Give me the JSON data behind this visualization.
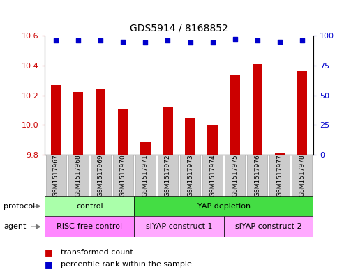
{
  "title": "GDS5914 / 8168852",
  "samples": [
    "GSM1517967",
    "GSM1517968",
    "GSM1517969",
    "GSM1517970",
    "GSM1517971",
    "GSM1517972",
    "GSM1517973",
    "GSM1517974",
    "GSM1517975",
    "GSM1517976",
    "GSM1517977",
    "GSM1517978"
  ],
  "bar_values": [
    10.27,
    10.22,
    10.24,
    10.11,
    9.89,
    10.12,
    10.05,
    10.0,
    10.34,
    10.41,
    9.81,
    10.36
  ],
  "percentile_values": [
    96,
    96,
    96,
    95,
    94,
    96,
    94,
    94,
    97,
    96,
    95,
    96
  ],
  "ylim_left": [
    9.8,
    10.6
  ],
  "ylim_right": [
    0,
    100
  ],
  "yticks_left": [
    9.8,
    10.0,
    10.2,
    10.4,
    10.6
  ],
  "yticks_right": [
    0,
    25,
    50,
    75,
    100
  ],
  "bar_color": "#cc0000",
  "dot_color": "#0000cc",
  "bar_bottom": 9.8,
  "protocol_groups": [
    {
      "label": "control",
      "start": 0,
      "end": 4,
      "color": "#aaffaa"
    },
    {
      "label": "YAP depletion",
      "start": 4,
      "end": 12,
      "color": "#44dd44"
    }
  ],
  "agent_groups": [
    {
      "label": "RISC-free control",
      "start": 0,
      "end": 4,
      "color": "#ff88ff"
    },
    {
      "label": "siYAP construct 1",
      "start": 4,
      "end": 8,
      "color": "#ffaaff"
    },
    {
      "label": "siYAP construct 2",
      "start": 8,
      "end": 12,
      "color": "#ffaaff"
    }
  ],
  "legend_items": [
    {
      "label": "transformed count",
      "color": "#cc0000"
    },
    {
      "label": "percentile rank within the sample",
      "color": "#0000cc"
    }
  ],
  "protocol_label": "protocol",
  "agent_label": "agent",
  "sample_box_color": "#cccccc",
  "background_color": "#ffffff"
}
